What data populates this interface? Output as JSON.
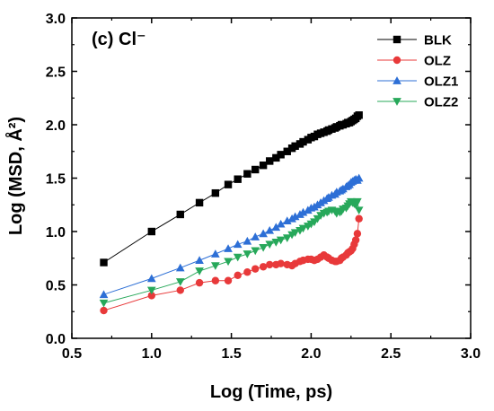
{
  "chart_data": {
    "type": "line",
    "panel_label": "(c) Cl⁻",
    "xlabel": "Log (Time, ps)",
    "ylabel": "Log (MSD, Å²)",
    "xlim": [
      0.5,
      3.0
    ],
    "ylim": [
      0.0,
      3.0
    ],
    "xticks": [
      "0.5",
      "1.0",
      "1.5",
      "2.0",
      "2.5",
      "3.0"
    ],
    "yticks": [
      "0.0",
      "0.5",
      "1.0",
      "1.5",
      "2.0",
      "2.5",
      "3.0"
    ],
    "grid": false,
    "legend_position": "top-right",
    "series": [
      {
        "name": "BLK",
        "color": "#000000",
        "marker": "square",
        "x": [
          0.7,
          1.0,
          1.18,
          1.3,
          1.4,
          1.48,
          1.54,
          1.6,
          1.65,
          1.7,
          1.74,
          1.78,
          1.81,
          1.85,
          1.88,
          1.9,
          1.93,
          1.95,
          1.98,
          2.0,
          2.02,
          2.04,
          2.06,
          2.08,
          2.1,
          2.11,
          2.13,
          2.15,
          2.16,
          2.18,
          2.19,
          2.2,
          2.22,
          2.23,
          2.24,
          2.25,
          2.26,
          2.27,
          2.28,
          2.29,
          2.3
        ],
        "y": [
          0.71,
          1.0,
          1.16,
          1.27,
          1.36,
          1.44,
          1.49,
          1.54,
          1.58,
          1.62,
          1.66,
          1.69,
          1.72,
          1.75,
          1.78,
          1.8,
          1.82,
          1.84,
          1.86,
          1.88,
          1.89,
          1.91,
          1.92,
          1.93,
          1.94,
          1.95,
          1.96,
          1.97,
          1.98,
          1.99,
          2.0,
          2.0,
          2.01,
          2.02,
          2.02,
          2.03,
          2.04,
          2.05,
          2.06,
          2.08,
          2.09
        ]
      },
      {
        "name": "OLZ",
        "color": "#e8393a",
        "marker": "circle",
        "x": [
          0.7,
          1.0,
          1.18,
          1.3,
          1.4,
          1.48,
          1.54,
          1.6,
          1.65,
          1.7,
          1.74,
          1.78,
          1.81,
          1.85,
          1.88,
          1.9,
          1.93,
          1.95,
          1.98,
          2.0,
          2.02,
          2.04,
          2.06,
          2.08,
          2.1,
          2.11,
          2.13,
          2.15,
          2.16,
          2.18,
          2.19,
          2.2,
          2.22,
          2.23,
          2.24,
          2.25,
          2.26,
          2.27,
          2.28,
          2.29,
          2.3
        ],
        "y": [
          0.26,
          0.4,
          0.45,
          0.52,
          0.54,
          0.54,
          0.59,
          0.62,
          0.65,
          0.67,
          0.69,
          0.69,
          0.7,
          0.69,
          0.68,
          0.7,
          0.72,
          0.73,
          0.74,
          0.74,
          0.73,
          0.74,
          0.76,
          0.78,
          0.76,
          0.75,
          0.73,
          0.72,
          0.72,
          0.73,
          0.75,
          0.76,
          0.78,
          0.8,
          0.81,
          0.82,
          0.84,
          0.88,
          0.92,
          0.98,
          1.12
        ]
      },
      {
        "name": "OLZ1",
        "color": "#2d6fd6",
        "marker": "triangle-up",
        "x": [
          0.7,
          1.0,
          1.18,
          1.3,
          1.4,
          1.48,
          1.54,
          1.6,
          1.65,
          1.7,
          1.74,
          1.78,
          1.81,
          1.85,
          1.88,
          1.9,
          1.93,
          1.95,
          1.98,
          2.0,
          2.02,
          2.04,
          2.06,
          2.08,
          2.1,
          2.11,
          2.13,
          2.15,
          2.16,
          2.18,
          2.19,
          2.2,
          2.22,
          2.23,
          2.24,
          2.25,
          2.26,
          2.27,
          2.28,
          2.29,
          2.3
        ],
        "y": [
          0.41,
          0.56,
          0.66,
          0.73,
          0.79,
          0.84,
          0.88,
          0.91,
          0.95,
          0.98,
          1.01,
          1.04,
          1.07,
          1.1,
          1.12,
          1.14,
          1.16,
          1.18,
          1.2,
          1.22,
          1.23,
          1.25,
          1.27,
          1.29,
          1.31,
          1.32,
          1.34,
          1.35,
          1.37,
          1.38,
          1.39,
          1.4,
          1.42,
          1.43,
          1.44,
          1.46,
          1.47,
          1.48,
          1.49,
          1.48,
          1.5
        ]
      },
      {
        "name": "OLZ2",
        "color": "#27a85a",
        "marker": "triangle-down",
        "x": [
          0.7,
          1.0,
          1.18,
          1.3,
          1.4,
          1.48,
          1.54,
          1.6,
          1.65,
          1.7,
          1.74,
          1.78,
          1.81,
          1.85,
          1.88,
          1.9,
          1.93,
          1.95,
          1.98,
          2.0,
          2.02,
          2.04,
          2.06,
          2.08,
          2.1,
          2.11,
          2.13,
          2.15,
          2.16,
          2.18,
          2.19,
          2.2,
          2.22,
          2.23,
          2.24,
          2.25,
          2.26,
          2.27,
          2.28,
          2.29,
          2.3
        ],
        "y": [
          0.33,
          0.45,
          0.53,
          0.63,
          0.68,
          0.72,
          0.76,
          0.79,
          0.82,
          0.85,
          0.88,
          0.9,
          0.92,
          0.94,
          0.97,
          0.99,
          1.01,
          1.03,
          1.05,
          1.07,
          1.09,
          1.12,
          1.15,
          1.17,
          1.18,
          1.19,
          1.2,
          1.19,
          1.17,
          1.18,
          1.19,
          1.21,
          1.22,
          1.24,
          1.26,
          1.28,
          1.27,
          1.26,
          1.25,
          1.28,
          1.2
        ]
      }
    ]
  }
}
